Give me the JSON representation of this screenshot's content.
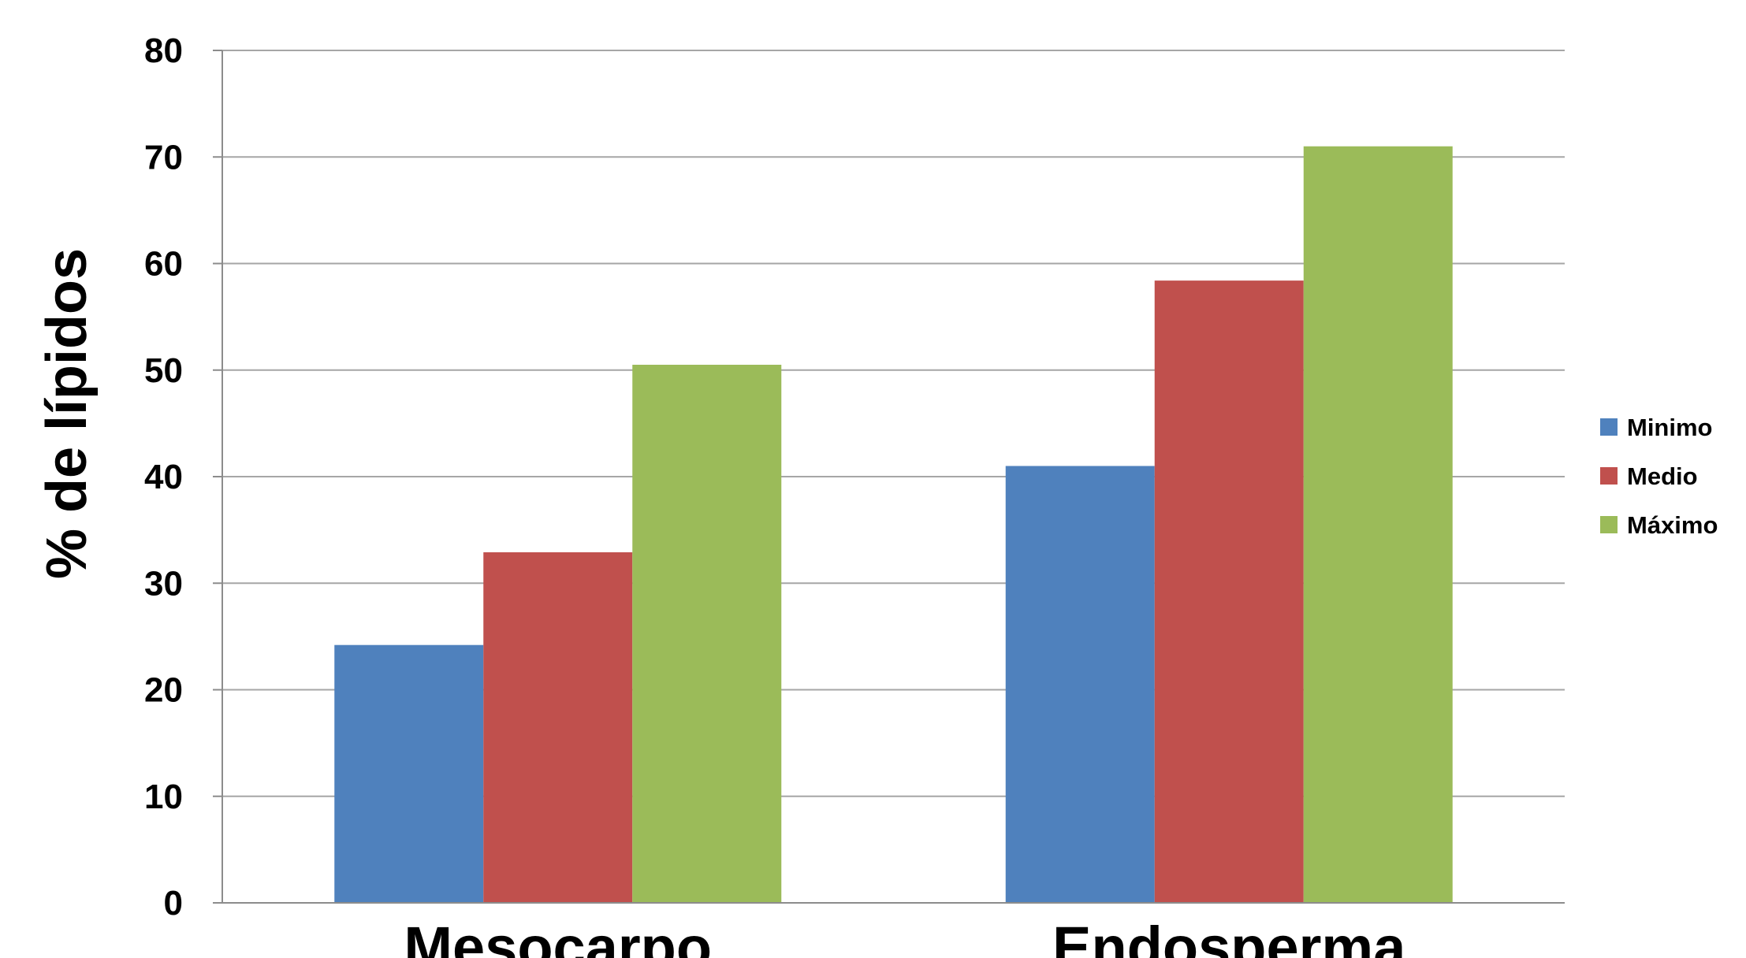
{
  "chart_data": {
    "type": "bar",
    "title": "",
    "xlabel": "",
    "ylabel": "% de lípidos",
    "categories": [
      "Mesocarpo",
      "Endosperma"
    ],
    "series": [
      {
        "name": "Minimo",
        "color": "#4f81bd",
        "values": [
          24.2,
          41.0
        ]
      },
      {
        "name": "Medio",
        "color": "#c0504d",
        "values": [
          32.9,
          58.4
        ]
      },
      {
        "name": "Máximo",
        "color": "#9bbb59",
        "values": [
          50.5,
          71.0
        ]
      }
    ],
    "ylim": [
      0,
      80
    ],
    "yticks": [
      0,
      10,
      20,
      30,
      40,
      50,
      60,
      70,
      80
    ],
    "grid": true,
    "legend_position": "right"
  }
}
